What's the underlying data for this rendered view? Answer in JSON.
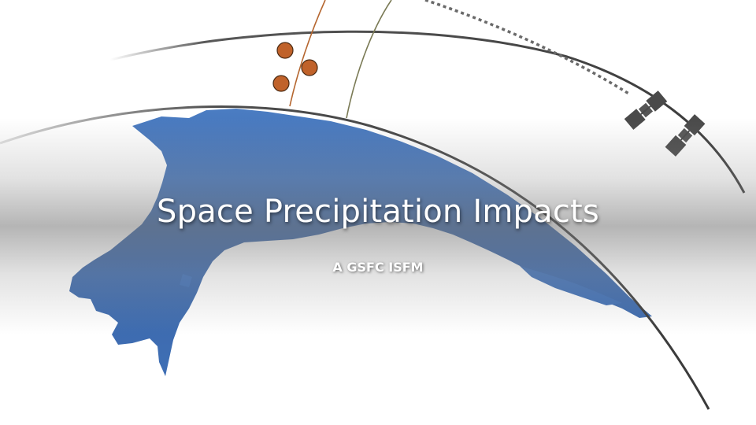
{
  "slide": {
    "title": "Space Precipitation Impacts",
    "subtitle": "A GSFC ISFM"
  },
  "colors": {
    "land": "#3f6fb5",
    "land_shadow": "#2a4f85",
    "orbit_line": "#3a3a3a",
    "particle": "#c0622a",
    "particle_track": "#b5662f",
    "field_line": "#7a7a55",
    "satellite": "#4a4a4a",
    "title_text": "#ffffff"
  },
  "icons": {
    "satellite": "satellite-icon",
    "particle": "particle-dot-icon"
  }
}
